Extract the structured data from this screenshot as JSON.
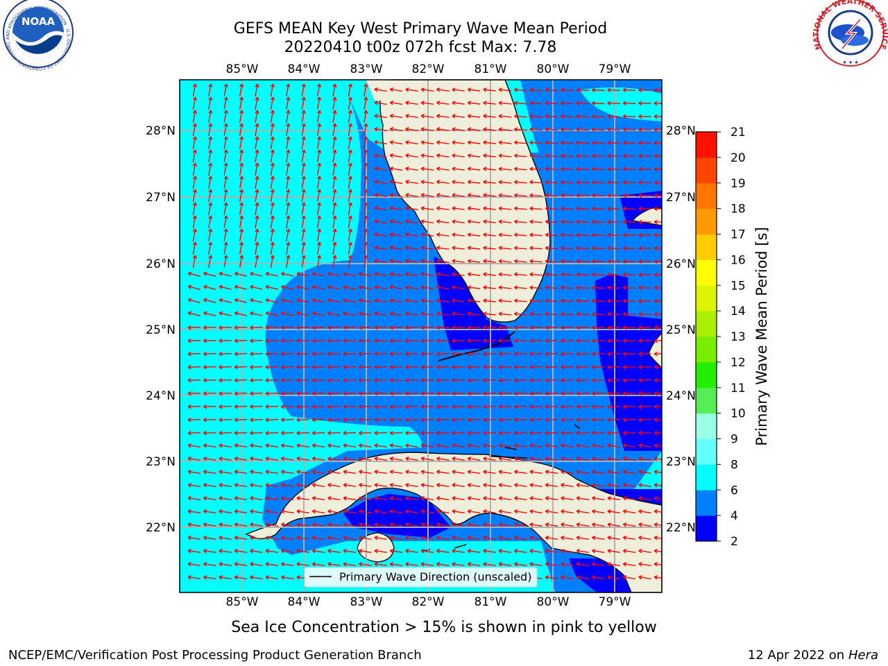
{
  "title": {
    "line1": "GEFS MEAN Key West Primary Wave Mean Period",
    "line2": "20220410 t00z 072h fcst   Max: 7.78"
  },
  "logos": {
    "left": "NOAA",
    "left_ring": "NATIONAL OCEANIC AND ATMOSPHERIC ADMINISTRATION · U.S. DEPARTMENT OF COMMERCE",
    "right_ring": "NATIONAL WEATHER SERVICE"
  },
  "map": {
    "lon_labels": [
      "85°W",
      "84°W",
      "83°W",
      "82°W",
      "81°W",
      "80°W",
      "79°W"
    ],
    "lat_labels": [
      "28°N",
      "27°N",
      "26°N",
      "25°N",
      "24°N",
      "23°N",
      "22°N"
    ],
    "legend_label": "Primary Wave Direction (unscaled)",
    "colors": {
      "ocean_6_8": "#00ffff",
      "ocean_4_6": "#0080ff",
      "ocean_2_4": "#0000ff",
      "land": "#efeedb",
      "grid": "#b0b0b0",
      "arrow": "#ff0000"
    }
  },
  "colorbar": {
    "label": "Primary Wave Mean Period [s]",
    "ticks": [
      "2",
      "4",
      "6",
      "8",
      "9",
      "10",
      "11",
      "12",
      "13",
      "14",
      "15",
      "16",
      "17",
      "18",
      "19",
      "20",
      "21"
    ],
    "colors": [
      "#0000ff",
      "#0080ff",
      "#00ffff",
      "#66ffff",
      "#99ffe6",
      "#55ee55",
      "#22ee00",
      "#77ee00",
      "#aaee00",
      "#ddf500",
      "#ffff00",
      "#ffcc00",
      "#ff9900",
      "#ff7700",
      "#ff4400",
      "#ff1100"
    ]
  },
  "caption": "Sea Ice Concentration > 15% is shown in pink to yellow",
  "footer": {
    "left": "NCEP/EMC/Verification Post Processing Product Generation Branch",
    "date": "12 Apr 2022 on",
    "machine": "Hera"
  }
}
